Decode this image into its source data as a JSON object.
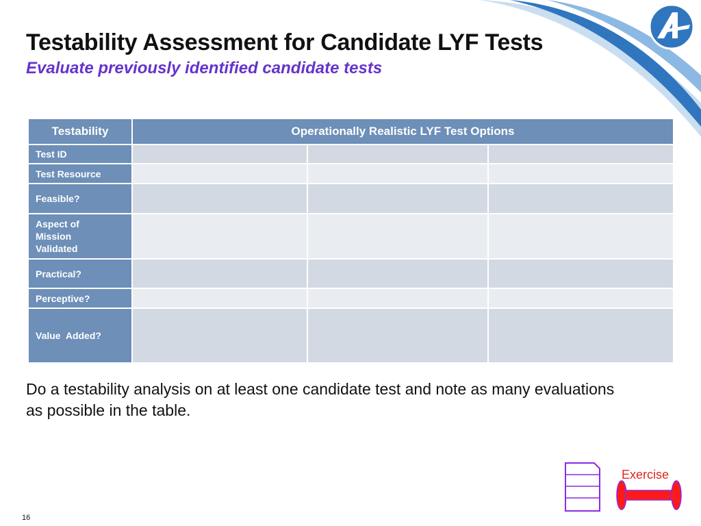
{
  "header": {
    "title": "Testability Assessment for Candidate LYF Tests",
    "subtitle": "Evaluate previously identified candidate tests"
  },
  "table": {
    "corner_header": "Testability",
    "options_header": "Operationally Realistic LYF Test Options",
    "rows": [
      {
        "label": "Test ID",
        "cells": [
          "",
          "",
          ""
        ]
      },
      {
        "label": "Test Resource",
        "cells": [
          "",
          "",
          ""
        ]
      },
      {
        "label": "Feasible?",
        "cells": [
          "",
          "",
          ""
        ]
      },
      {
        "label": "Aspect of Mission Validated",
        "cells": [
          "",
          "",
          ""
        ]
      },
      {
        "label": "Practical?",
        "cells": [
          "",
          "",
          ""
        ]
      },
      {
        "label": "Perceptive?",
        "cells": [
          "",
          "",
          ""
        ]
      },
      {
        "label": "Value  Added?",
        "cells": [
          "",
          "",
          ""
        ]
      }
    ]
  },
  "instruction": "Do a testability analysis on at least one candidate test and note as many evaluations as possible in the table.",
  "exercise_label": "Exercise",
  "page_number": "16",
  "colors": {
    "header_fill": "#6d8fb8",
    "cell_dark": "#d3d9e3",
    "cell_light": "#e9ecf1",
    "subtitle": "#6633cc",
    "exercise_red": "#e0261b",
    "icon_purple": "#8a2be2"
  }
}
